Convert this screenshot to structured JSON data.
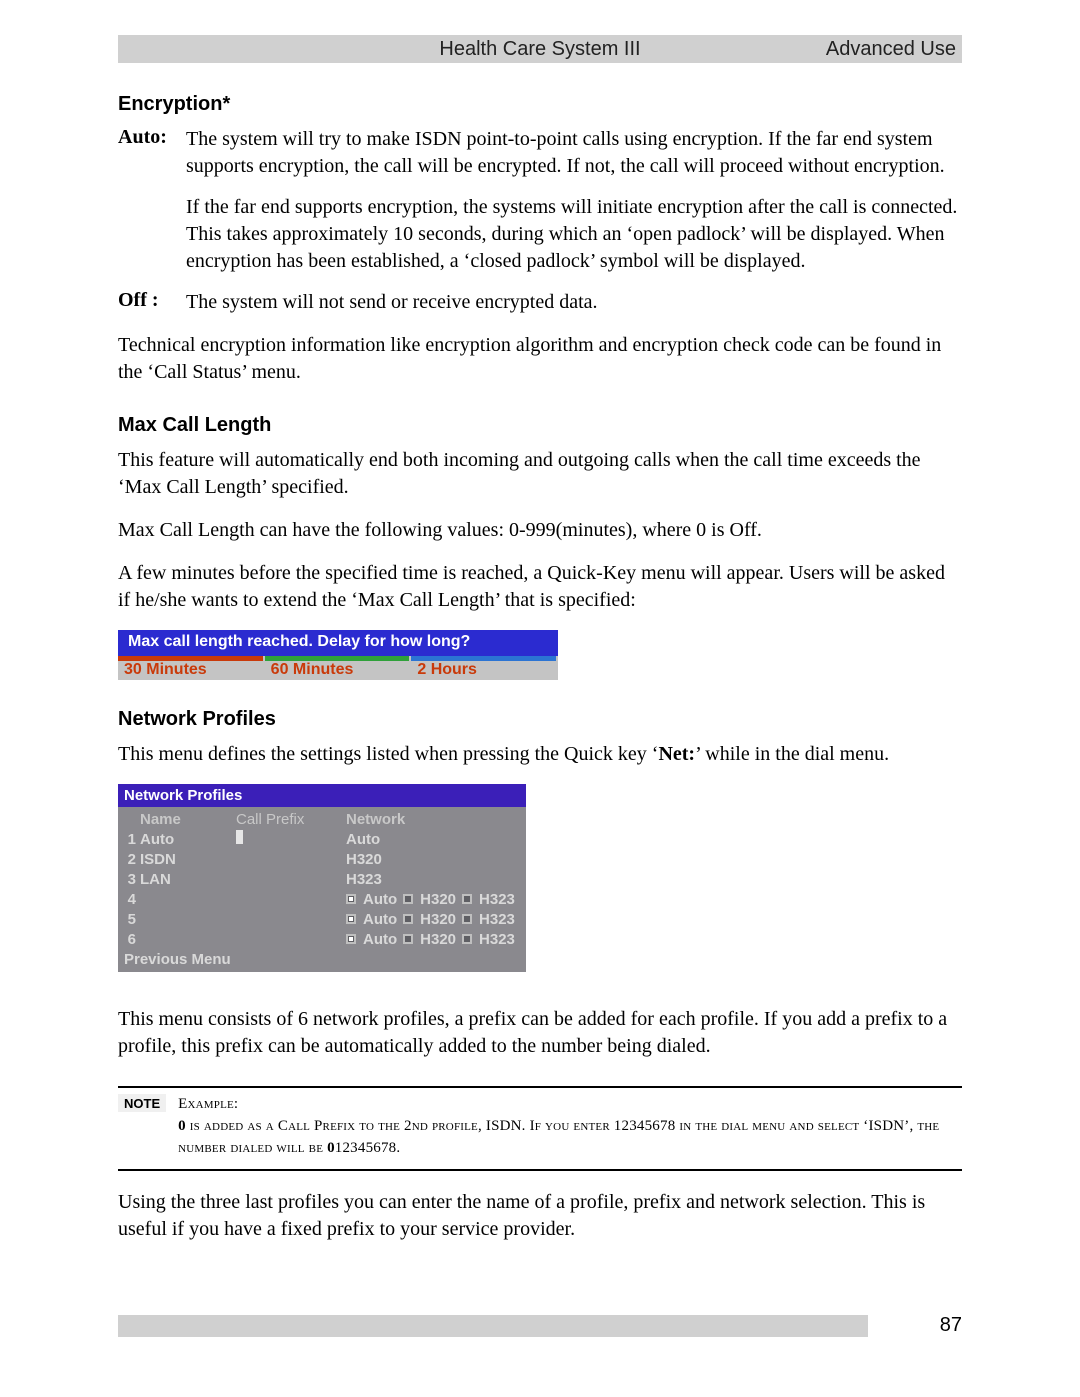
{
  "header": {
    "center": "Health Care System III",
    "right": "Advanced Use"
  },
  "sections": {
    "encryption": {
      "title": "Encryption*",
      "auto_label": "Auto:",
      "auto_p1": "The system will try to make ISDN point-to-point calls using encryption. If the far end system supports encryption, the call will be encrypted. If not, the call will proceed without encryption.",
      "auto_p2": "If the far end supports encryption, the systems will initiate encryption after the call is connected. This takes approximately 10 seconds, during which an ‘open padlock’ will be displayed. When encryption has been established, a ‘closed padlock’ symbol will be displayed.",
      "off_label": "Off :",
      "off_p": "The system will not send or receive encrypted data.",
      "tech_p": "Technical encryption information like encryption algorithm and encryption check code can be found in the ‘Call Status’ menu."
    },
    "maxcall": {
      "title": "Max Call Length",
      "p1": "This feature will automatically end both incoming and outgoing calls when the call time exceeds the ‘Max Call Length’ specified.",
      "p2": "Max Call Length can have the following values: 0-999(minutes), where 0 is Off.",
      "p3": "A few minutes before the specified time is reached, a Quick-Key menu will appear. Users will be asked if he/she wants to extend the ‘Max Call Length’ that is specified:"
    },
    "netprof": {
      "title": "Network Profiles",
      "intro_a": "This menu defines the settings listed when pressing the Quick key ‘",
      "intro_bold": "Net:",
      "intro_b": "’ while in the dial menu.",
      "p_after": "This menu consists of 6 network profiles, a prefix can be added for each profile. If you add a prefix to a profile, this prefix can be automatically added to the number being dialed.",
      "p_last": "Using the three last profiles you can enter the name of a profile, prefix and network selection. This is useful if you have a fixed prefix to your service provider."
    }
  },
  "quickkey": {
    "title": "Max call length reached. Delay for how long?",
    "opts": [
      "30 Minutes",
      "60 Minutes",
      "2 Hours"
    ],
    "bar_colors": [
      "#c93a0a",
      "#2fa13a",
      "#2b74d3"
    ],
    "text_color": "#c93a0a",
    "title_bg": "#2b2bd0",
    "body_bg": "#c4c4c4"
  },
  "network_profiles": {
    "title": "Network Profiles",
    "headers": {
      "name": "Name",
      "prefix": "Call Prefix",
      "network": "Network"
    },
    "title_bg": "#3b1fb8",
    "body_bg": "#8a898e",
    "text_color": "#d9d9d9",
    "rows": [
      {
        "idx": "1",
        "name": "Auto",
        "network_label": "Auto",
        "type": "fixed",
        "cursor": true
      },
      {
        "idx": "2",
        "name": "ISDN",
        "network_label": "H320",
        "type": "fixed"
      },
      {
        "idx": "3",
        "name": "LAN",
        "network_label": "H323",
        "type": "fixed"
      },
      {
        "idx": "4",
        "name": "",
        "type": "choice",
        "choices": [
          "Auto",
          "H320",
          "H323"
        ],
        "selected": 0
      },
      {
        "idx": "5",
        "name": "",
        "type": "choice",
        "choices": [
          "Auto",
          "H320",
          "H323"
        ],
        "selected": 0
      },
      {
        "idx": "6",
        "name": "",
        "type": "choice",
        "choices": [
          "Auto",
          "H320",
          "H323"
        ],
        "selected": 0
      }
    ],
    "previous": "Previous Menu"
  },
  "note": {
    "tag": "NOTE",
    "example_label": "Example:",
    "line_a": "0",
    "line_b": " is added as a Call Prefix to the 2nd profile, ISDN. If you enter 12345678 in the dial menu and select ‘ISDN’, the number dialed will be ",
    "line_c": "0",
    "line_d": "12345678."
  },
  "footer": {
    "page_number": "87"
  }
}
